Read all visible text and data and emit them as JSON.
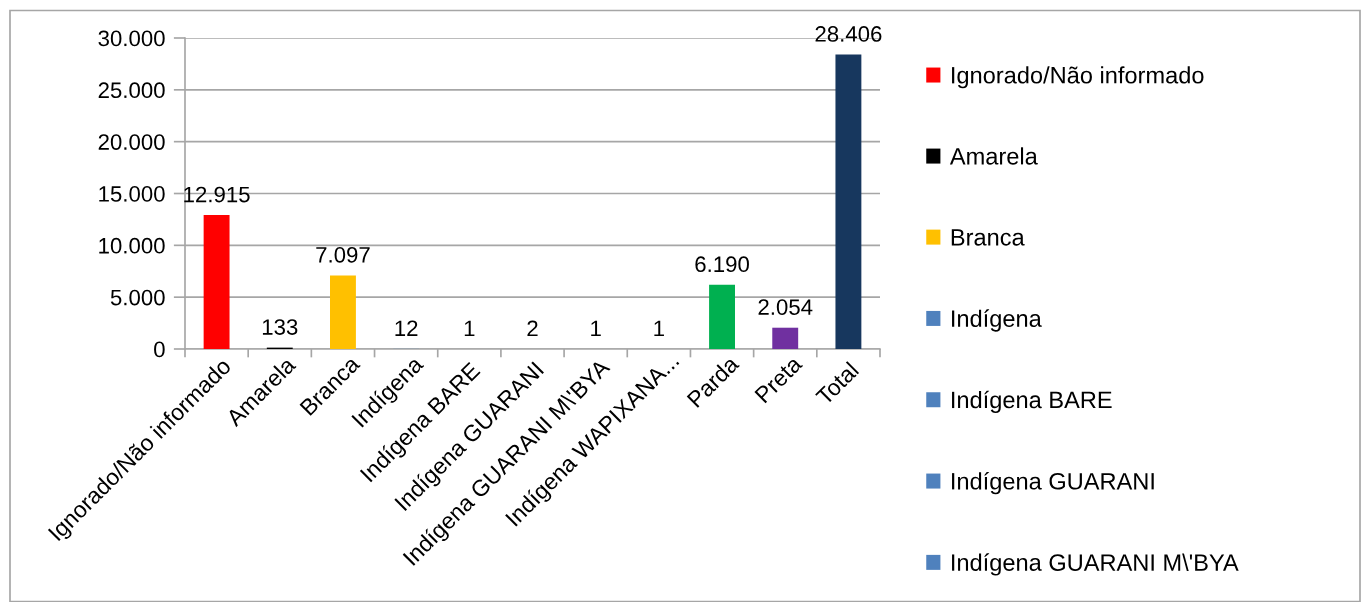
{
  "chart_data": {
    "type": "bar",
    "categories": [
      "Ignorado/Não informado",
      "Amarela",
      "Branca",
      "Indígena",
      "Indígena BARE",
      "Indígena GUARANI",
      "Indígena GUARANI M\\'BYA",
      "Indígena WAPIXANA...",
      "Parda",
      "Preta",
      "Total"
    ],
    "series": [
      {
        "name": "Ignorado/Não informado",
        "color": "#ff0000",
        "values": [
          12915,
          null,
          null,
          null,
          null,
          null,
          null,
          null,
          null,
          null,
          null
        ],
        "value_labels": [
          "12.915",
          null,
          null,
          null,
          null,
          null,
          null,
          null,
          null,
          null,
          null
        ]
      },
      {
        "name": "Amarela",
        "color": "#000000",
        "values": [
          null,
          133,
          null,
          null,
          null,
          null,
          null,
          null,
          null,
          null,
          null
        ],
        "value_labels": [
          null,
          "133",
          null,
          null,
          null,
          null,
          null,
          null,
          null,
          null,
          null
        ]
      },
      {
        "name": "Branca",
        "color": "#ffc000",
        "values": [
          null,
          null,
          7097,
          null,
          null,
          null,
          null,
          null,
          null,
          null,
          null
        ],
        "value_labels": [
          null,
          null,
          "7.097",
          null,
          null,
          null,
          null,
          null,
          null,
          null,
          null
        ]
      },
      {
        "name": "Indígena",
        "color": "#4f81bd",
        "values": [
          null,
          null,
          null,
          12,
          null,
          null,
          null,
          null,
          null,
          null,
          null
        ],
        "value_labels": [
          null,
          null,
          null,
          "12",
          null,
          null,
          null,
          null,
          null,
          null,
          null
        ]
      },
      {
        "name": "Indígena BARE",
        "color": "#4f81bd",
        "values": [
          null,
          null,
          null,
          null,
          1,
          null,
          null,
          null,
          null,
          null,
          null
        ],
        "value_labels": [
          null,
          null,
          null,
          null,
          "1",
          null,
          null,
          null,
          null,
          null,
          null
        ]
      },
      {
        "name": "Indígena GUARANI",
        "color": "#4f81bd",
        "values": [
          null,
          null,
          null,
          null,
          null,
          2,
          null,
          null,
          null,
          null,
          null
        ],
        "value_labels": [
          null,
          null,
          null,
          null,
          null,
          "2",
          null,
          null,
          null,
          null,
          null
        ]
      },
      {
        "name": "Indígena GUARANI M\\'BYA",
        "color": "#4f81bd",
        "values": [
          null,
          null,
          null,
          null,
          null,
          null,
          1,
          null,
          null,
          null,
          null
        ],
        "value_labels": [
          null,
          null,
          null,
          null,
          null,
          null,
          "1",
          null,
          null,
          null,
          null
        ]
      },
      {
        "color": "#4f81bd",
        "values": [
          null,
          null,
          null,
          null,
          null,
          null,
          null,
          1,
          null,
          null,
          null
        ],
        "value_labels": [
          null,
          null,
          null,
          null,
          null,
          null,
          null,
          "1",
          null,
          null,
          null
        ]
      },
      {
        "color": "#00b050",
        "values": [
          null,
          null,
          null,
          null,
          null,
          null,
          null,
          null,
          6190,
          null,
          null
        ],
        "value_labels": [
          null,
          null,
          null,
          null,
          null,
          null,
          null,
          null,
          "6.190",
          null,
          null
        ]
      },
      {
        "color": "#7030a0",
        "values": [
          null,
          null,
          null,
          null,
          null,
          null,
          null,
          null,
          null,
          2054,
          null
        ],
        "value_labels": [
          null,
          null,
          null,
          null,
          null,
          null,
          null,
          null,
          null,
          "2.054",
          null
        ]
      },
      {
        "color": "#17375e",
        "values": [
          null,
          null,
          null,
          null,
          null,
          null,
          null,
          null,
          null,
          null,
          28406
        ],
        "value_labels": [
          null,
          null,
          null,
          null,
          null,
          null,
          null,
          null,
          null,
          null,
          "28.406"
        ]
      }
    ],
    "ylim": [
      0,
      30000
    ],
    "yticks": [
      0,
      {
        "value": 5000,
        "label": "5.000"
      },
      {
        "value": 10000,
        "label": "10.000"
      },
      {
        "value": 15000,
        "label": "15.000"
      },
      {
        "value": 20000,
        "label": "20.000"
      },
      {
        "value": 25000,
        "label": "25.000"
      },
      {
        "value": 30000,
        "label": "30.000"
      }
    ],
    "grid": "y",
    "legend": "right"
  }
}
